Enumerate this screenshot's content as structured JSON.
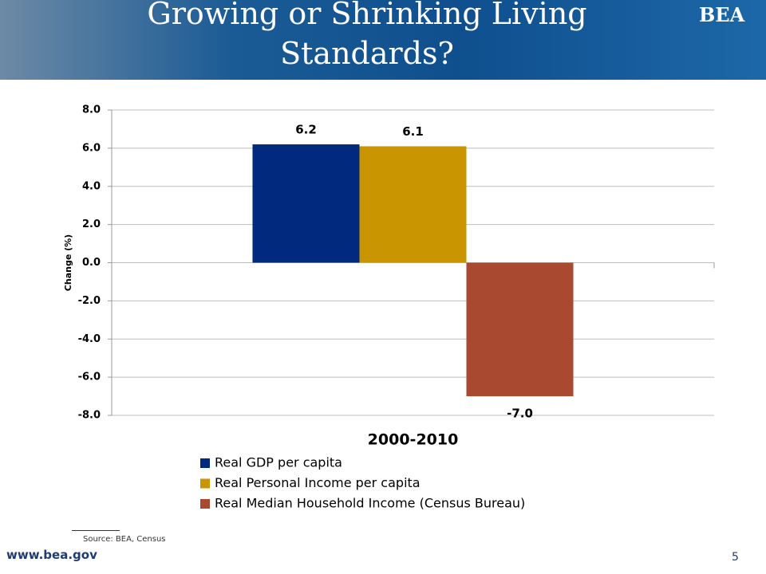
{
  "slide": {
    "title": "Growing or Shrinking Living Standards?",
    "logo": "BEA",
    "source": "Source: BEA, Census",
    "url": "www.bea.gov",
    "page": "5"
  },
  "chart_data": {
    "type": "bar",
    "y_label": "Change (%)",
    "categories": [
      "2000-2010"
    ],
    "series": [
      {
        "name": "Real GDP per capita",
        "color": "#012a7e",
        "values": [
          6.2
        ],
        "value_labels": [
          "6.2"
        ]
      },
      {
        "name": "Real Personal Income per capita",
        "color": "#c99500",
        "values": [
          6.1
        ],
        "value_labels": [
          "6.1"
        ]
      },
      {
        "name": "Real Median Household Income (Census Bureau)",
        "color": "#a94930",
        "values": [
          -7.0
        ],
        "value_labels": [
          "-7.0"
        ]
      }
    ],
    "ylim": [
      -8,
      8
    ],
    "yticks": [
      {
        "value": -8,
        "label": "-8.0"
      },
      {
        "value": -6,
        "label": "-6.0"
      },
      {
        "value": -4,
        "label": "-4.0"
      },
      {
        "value": -2,
        "label": "-2.0"
      },
      {
        "value": 0,
        "label": "0.0"
      },
      {
        "value": 2,
        "label": "2.0"
      },
      {
        "value": 4,
        "label": "4.0"
      },
      {
        "value": 6,
        "label": "6.0"
      },
      {
        "value": 8,
        "label": "8.0"
      }
    ],
    "grid": true
  }
}
